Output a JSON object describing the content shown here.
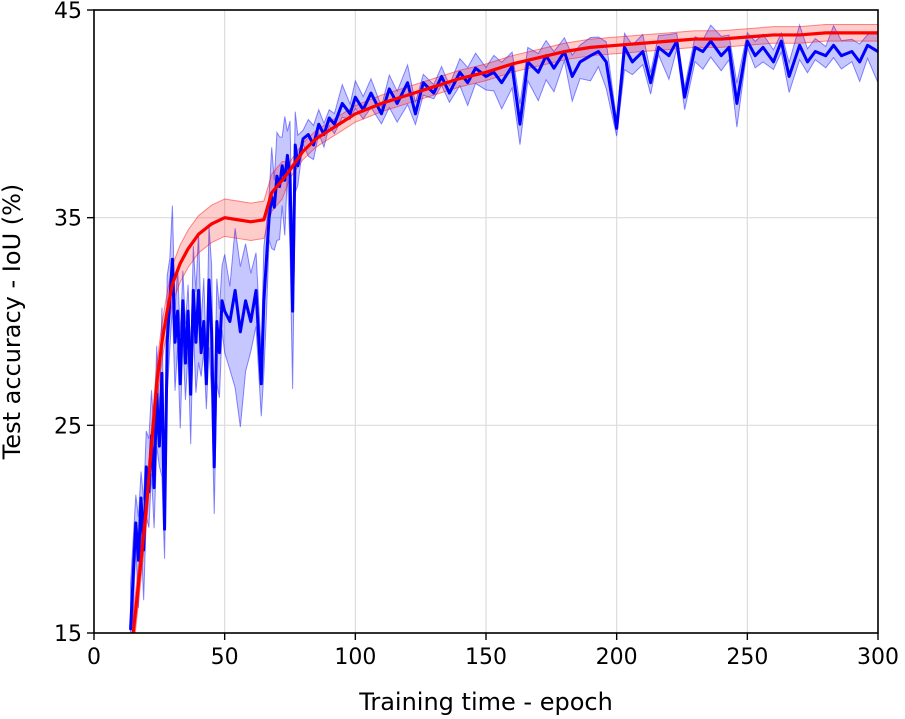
{
  "chart_data": {
    "type": "line",
    "xlabel": "Training time - epoch",
    "ylabel": "Test accuracy - IoU (%)",
    "xlim": [
      0,
      300
    ],
    "ylim": [
      15,
      45
    ],
    "xticks": [
      0,
      50,
      100,
      150,
      200,
      250,
      300
    ],
    "yticks": [
      15,
      25,
      35,
      45
    ],
    "grid": true,
    "colors": {
      "blue": "#0000ff",
      "red": "#ff0000"
    },
    "series": [
      {
        "color": "#0000ff",
        "style": "noisy mean with shaded band",
        "x": [
          14,
          16,
          17,
          18,
          19,
          20,
          21,
          22,
          23,
          24,
          25,
          26,
          27,
          28,
          29,
          30,
          31,
          32,
          33,
          34,
          35,
          36,
          37,
          38,
          39,
          40,
          41,
          42,
          43,
          44,
          45,
          46,
          47,
          48,
          49,
          50,
          52,
          54,
          56,
          58,
          60,
          62,
          64,
          65,
          66,
          67,
          68,
          69,
          70,
          71,
          72,
          73,
          74,
          75,
          76,
          77,
          78,
          80,
          82,
          84,
          86,
          88,
          90,
          92,
          95,
          98,
          100,
          103,
          106,
          110,
          113,
          116,
          120,
          123,
          126,
          130,
          133,
          136,
          140,
          143,
          146,
          150,
          153,
          156,
          160,
          163,
          166,
          170,
          173,
          176,
          180,
          183,
          186,
          190,
          193,
          196,
          200,
          203,
          206,
          210,
          213,
          216,
          220,
          223,
          226,
          230,
          233,
          236,
          240,
          243,
          246,
          250,
          253,
          256,
          260,
          263,
          266,
          270,
          273,
          276,
          280,
          283,
          286,
          290,
          293,
          296,
          300
        ],
        "values": [
          15.2,
          20.3,
          18.5,
          21.5,
          19.0,
          23.0,
          21.8,
          24.5,
          22.0,
          26.5,
          24.0,
          27.5,
          20.0,
          29.0,
          31.0,
          33.0,
          29.0,
          30.5,
          27.0,
          31.0,
          28.0,
          30.5,
          26.5,
          31.5,
          29.0,
          31.5,
          28.5,
          30.0,
          27.0,
          32.0,
          29.5,
          23.0,
          30.0,
          28.5,
          31.0,
          30.5,
          30.0,
          31.5,
          29.5,
          31.0,
          30.0,
          31.5,
          27.0,
          31.0,
          33.0,
          35.0,
          36.0,
          35.5,
          37.0,
          36.5,
          37.5,
          36.8,
          38.0,
          37.0,
          30.5,
          38.5,
          37.5,
          38.8,
          39.0,
          38.5,
          39.5,
          39.0,
          39.8,
          39.5,
          40.5,
          40.0,
          40.8,
          40.2,
          41.0,
          40.0,
          41.2,
          40.5,
          41.5,
          40.0,
          41.5,
          41.0,
          41.8,
          41.0,
          42.0,
          41.5,
          42.2,
          41.8,
          42.0,
          41.5,
          42.3,
          39.5,
          42.5,
          42.0,
          42.8,
          42.2,
          43.0,
          41.8,
          42.5,
          42.8,
          43.0,
          42.5,
          39.3,
          43.2,
          42.5,
          43.0,
          41.5,
          43.2,
          42.8,
          43.5,
          40.8,
          43.2,
          43.0,
          43.5,
          42.8,
          43.2,
          40.5,
          43.5,
          42.8,
          43.2,
          42.5,
          43.5,
          41.8,
          43.3,
          42.5,
          43.0,
          42.8,
          43.3,
          42.8,
          43.0,
          42.5,
          43.3,
          43.0
        ]
      },
      {
        "color": "#ff0000",
        "style": "smooth mean with shaded band",
        "x": [
          15,
          18,
          20,
          22,
          24,
          26,
          28,
          30,
          33,
          36,
          40,
          45,
          50,
          55,
          60,
          65,
          68,
          72,
          75,
          80,
          85,
          90,
          95,
          100,
          110,
          120,
          130,
          140,
          150,
          160,
          170,
          180,
          190,
          200,
          210,
          220,
          230,
          240,
          250,
          260,
          270,
          280,
          290,
          300
        ],
        "values": [
          15.0,
          18.5,
          21.0,
          24.0,
          27.0,
          29.0,
          30.5,
          31.8,
          32.8,
          33.5,
          34.2,
          34.7,
          35.0,
          34.9,
          34.8,
          34.9,
          36.2,
          36.8,
          37.3,
          38.2,
          38.8,
          39.2,
          39.6,
          40.0,
          40.5,
          40.9,
          41.3,
          41.7,
          42.0,
          42.4,
          42.7,
          43.0,
          43.2,
          43.3,
          43.4,
          43.5,
          43.6,
          43.6,
          43.7,
          43.8,
          43.8,
          43.9,
          43.9,
          43.9
        ]
      }
    ]
  }
}
